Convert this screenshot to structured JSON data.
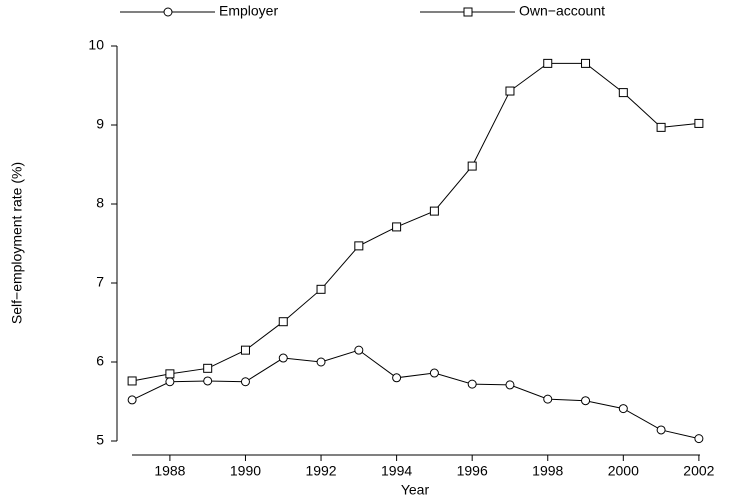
{
  "chart_data": {
    "type": "line",
    "y_label": "Self−employment rate (%)",
    "x_label": "Year",
    "x": [
      1987,
      1988,
      1989,
      1990,
      1991,
      1992,
      1993,
      1994,
      1995,
      1996,
      1997,
      1998,
      1999,
      2000,
      2001,
      2002
    ],
    "series": [
      {
        "name": "Employer",
        "color": "#000000",
        "marker": "circle",
        "values": [
          5.52,
          5.75,
          5.76,
          5.75,
          6.05,
          6.0,
          6.15,
          5.8,
          5.86,
          5.72,
          5.71,
          5.53,
          5.51,
          5.41,
          5.14,
          5.03
        ]
      },
      {
        "name": "Own−account",
        "color": "#000000",
        "marker": "square",
        "values": [
          5.76,
          5.85,
          5.92,
          6.15,
          6.51,
          6.92,
          7.47,
          7.71,
          7.91,
          8.48,
          9.43,
          9.78,
          9.78,
          9.41,
          8.97,
          9.02
        ]
      }
    ],
    "xlim": [
      1986.6,
      2002.4
    ],
    "xticks": [
      1988,
      1990,
      1992,
      1994,
      1996,
      1998,
      2000,
      2002
    ],
    "ylim": [
      5,
      10
    ],
    "yticks": [
      5,
      6,
      7,
      8,
      9,
      10
    ],
    "grid": false,
    "legend": "top"
  }
}
